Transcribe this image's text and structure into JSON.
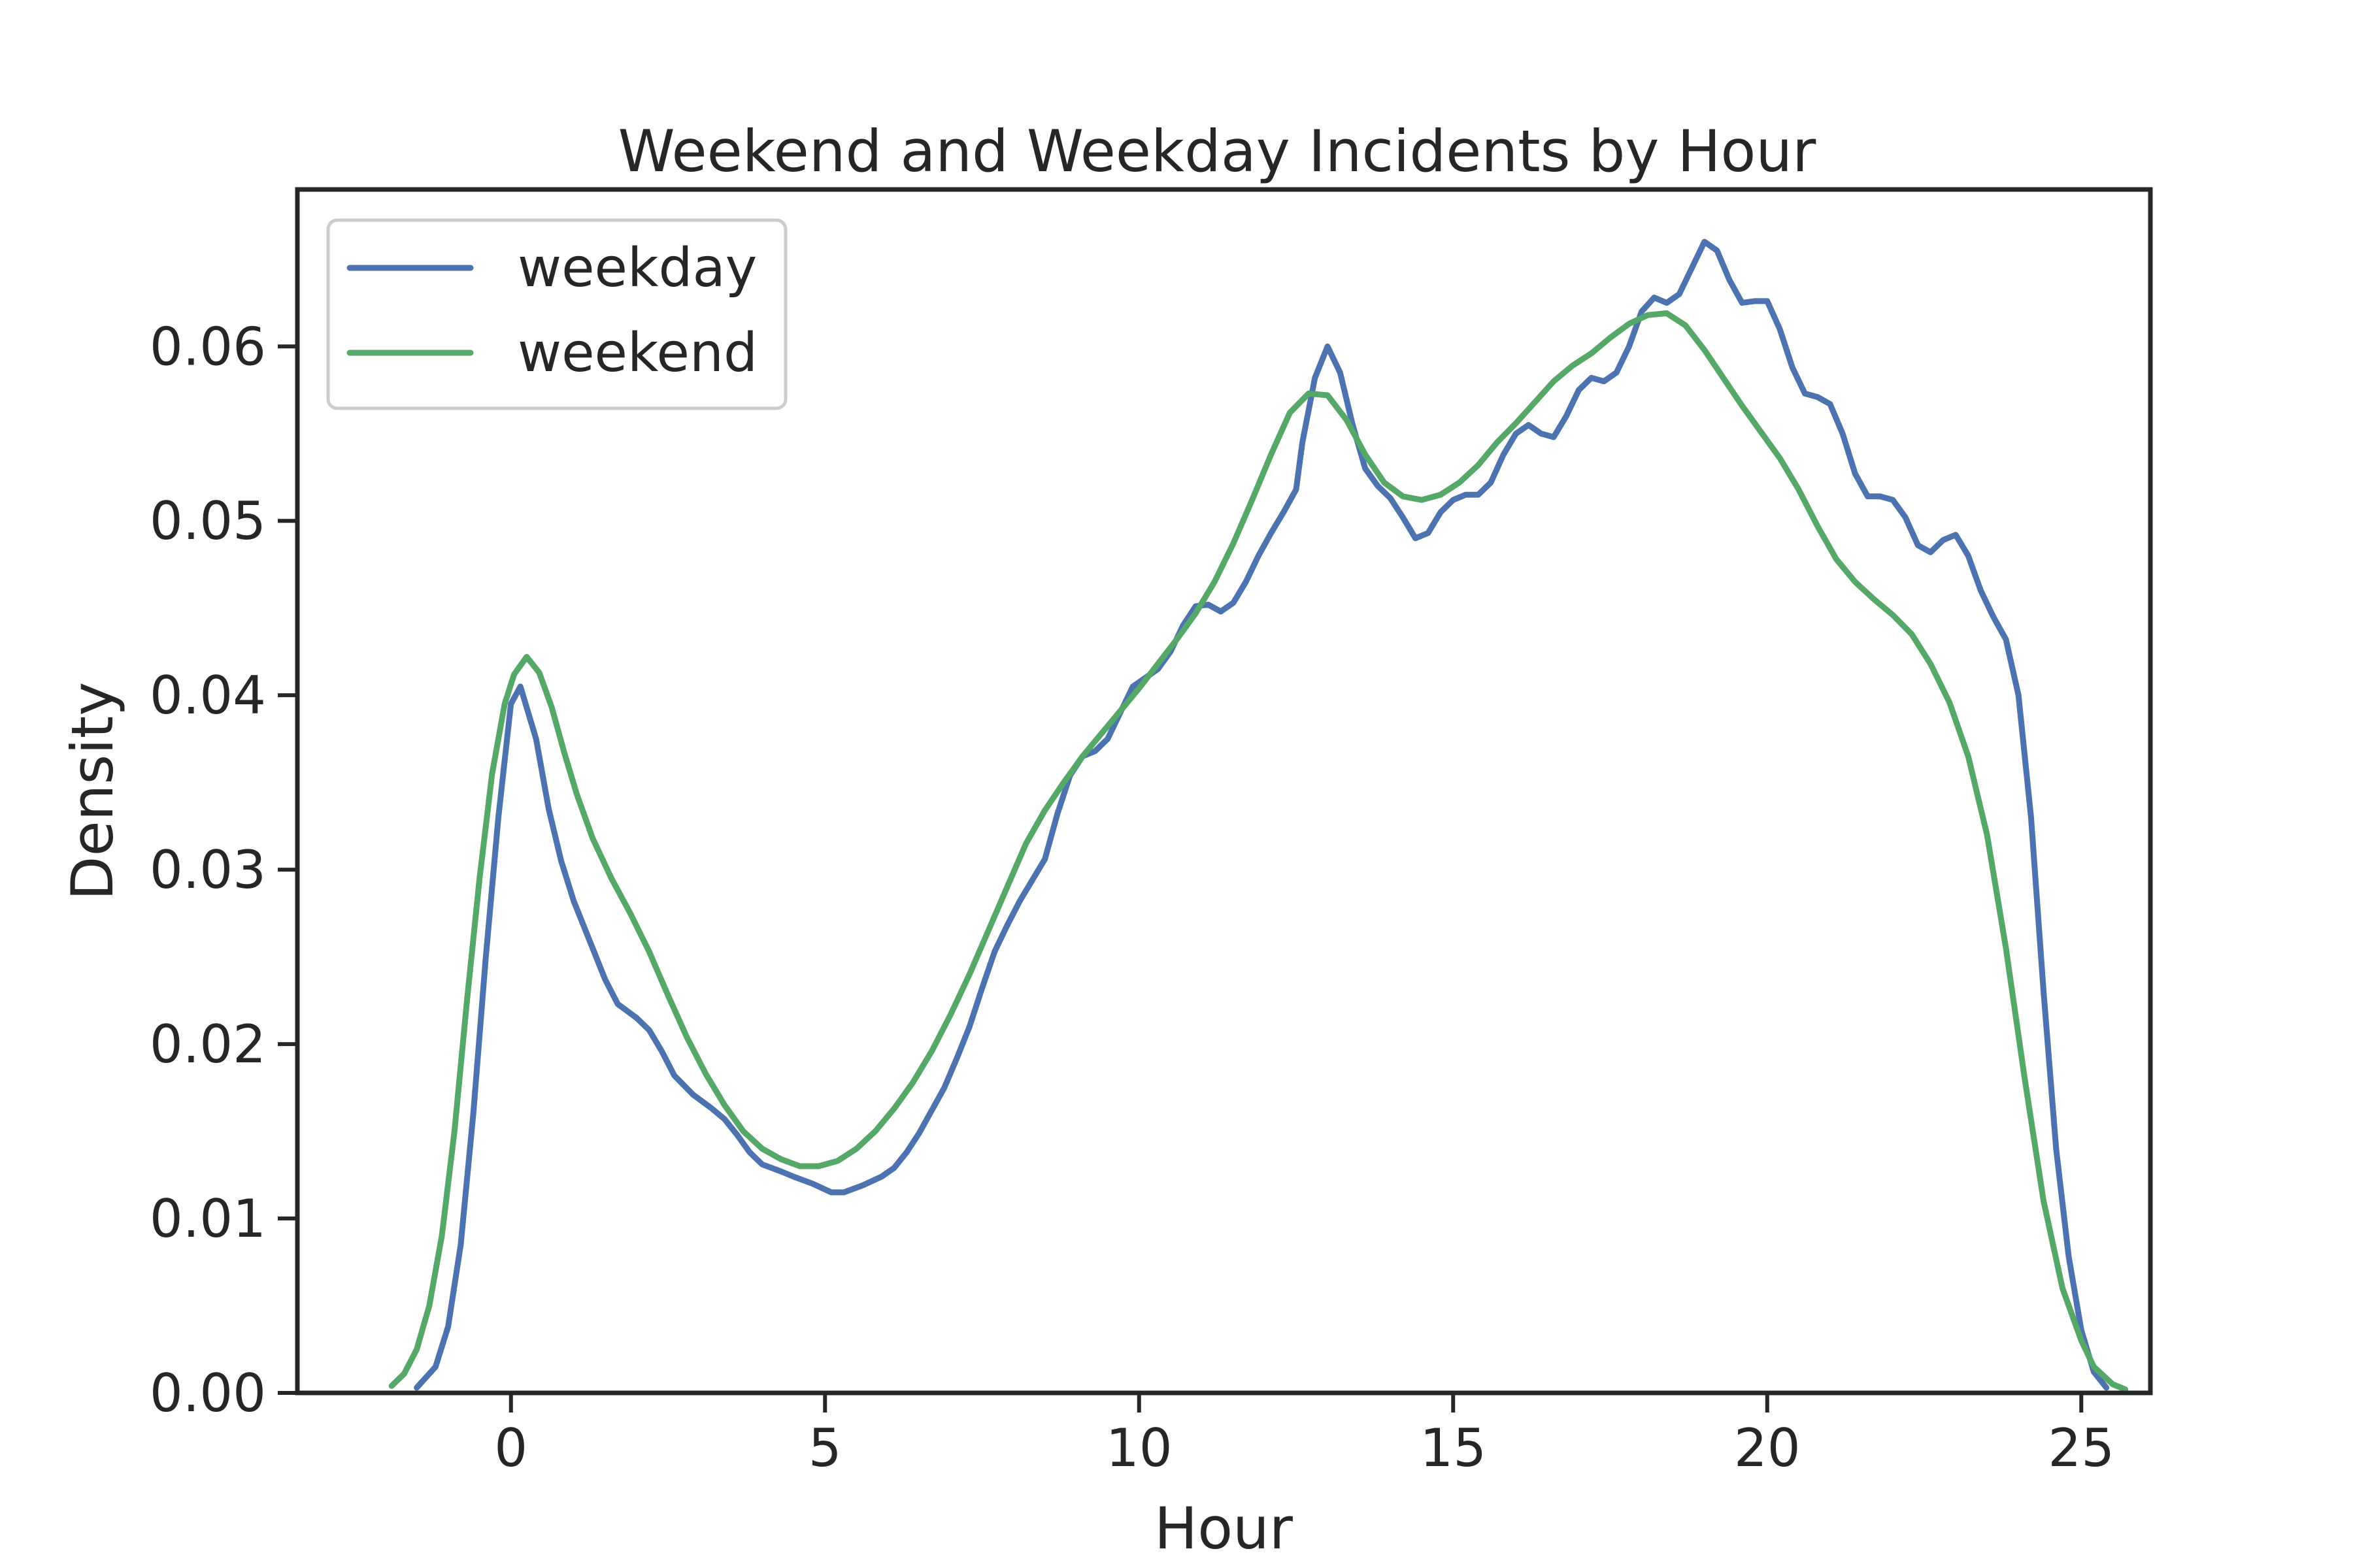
{
  "chart_data": {
    "type": "line",
    "title": "Weekend and Weekday Incidents by Hour",
    "xlabel": "Hour",
    "ylabel": "Density",
    "xlim": [
      -3.4,
      26.1
    ],
    "ylim": [
      0,
      0.069
    ],
    "xticks": [
      0,
      5,
      10,
      15,
      20,
      25
    ],
    "xtick_labels": [
      "0",
      "5",
      "10",
      "15",
      "20",
      "25"
    ],
    "yticks": [
      0,
      0.01,
      0.02,
      0.03,
      0.04,
      0.05,
      0.06
    ],
    "ytick_labels": [
      "0.00",
      "0.01",
      "0.02",
      "0.03",
      "0.04",
      "0.05",
      "0.06"
    ],
    "grid": false,
    "legend_position": "top-left",
    "series": [
      {
        "name": "weekday",
        "color": "#4c72b0",
        "points": [
          [
            -1.5,
            0.0003
          ],
          [
            -1.2,
            0.0015
          ],
          [
            -1.0,
            0.0038
          ],
          [
            -0.8,
            0.0085
          ],
          [
            -0.6,
            0.016
          ],
          [
            -0.4,
            0.025
          ],
          [
            -0.2,
            0.033
          ],
          [
            0.0,
            0.0395
          ],
          [
            0.15,
            0.0405
          ],
          [
            0.4,
            0.0375
          ],
          [
            0.6,
            0.0335
          ],
          [
            0.8,
            0.0305
          ],
          [
            1.0,
            0.0282
          ],
          [
            1.3,
            0.0255
          ],
          [
            1.5,
            0.0237
          ],
          [
            1.7,
            0.0223
          ],
          [
            2.0,
            0.0215
          ],
          [
            2.2,
            0.0208
          ],
          [
            2.4,
            0.0196
          ],
          [
            2.6,
            0.0182
          ],
          [
            2.9,
            0.0171
          ],
          [
            3.2,
            0.0163
          ],
          [
            3.4,
            0.0157
          ],
          [
            3.6,
            0.0148
          ],
          [
            3.8,
            0.0138
          ],
          [
            4.0,
            0.0131
          ],
          [
            4.3,
            0.0127
          ],
          [
            4.5,
            0.0124
          ],
          [
            4.8,
            0.012
          ],
          [
            5.1,
            0.0115
          ],
          [
            5.3,
            0.0115
          ],
          [
            5.6,
            0.0119
          ],
          [
            5.9,
            0.0124
          ],
          [
            6.1,
            0.0129
          ],
          [
            6.3,
            0.0138
          ],
          [
            6.5,
            0.0149
          ],
          [
            6.7,
            0.0162
          ],
          [
            6.9,
            0.0175
          ],
          [
            7.1,
            0.0192
          ],
          [
            7.3,
            0.021
          ],
          [
            7.5,
            0.0232
          ],
          [
            7.7,
            0.0253
          ],
          [
            7.9,
            0.0268
          ],
          [
            8.1,
            0.0282
          ],
          [
            8.3,
            0.0294
          ],
          [
            8.5,
            0.0306
          ],
          [
            8.7,
            0.0332
          ],
          [
            8.9,
            0.0354
          ],
          [
            9.1,
            0.0365
          ],
          [
            9.3,
            0.0368
          ],
          [
            9.5,
            0.0375
          ],
          [
            9.7,
            0.039
          ],
          [
            9.9,
            0.0405
          ],
          [
            10.1,
            0.041
          ],
          [
            10.3,
            0.0415
          ],
          [
            10.5,
            0.0425
          ],
          [
            10.7,
            0.044
          ],
          [
            10.9,
            0.0451
          ],
          [
            11.1,
            0.0452
          ],
          [
            11.3,
            0.0448
          ],
          [
            11.5,
            0.0453
          ],
          [
            11.7,
            0.0465
          ],
          [
            11.9,
            0.048
          ],
          [
            12.1,
            0.0493
          ],
          [
            12.3,
            0.0505
          ],
          [
            12.5,
            0.0518
          ],
          [
            12.6,
            0.0545
          ],
          [
            12.8,
            0.0582
          ],
          [
            13.0,
            0.06
          ],
          [
            13.2,
            0.0585
          ],
          [
            13.4,
            0.0555
          ],
          [
            13.6,
            0.053
          ],
          [
            13.8,
            0.052
          ],
          [
            14.0,
            0.0513
          ],
          [
            14.2,
            0.0502
          ],
          [
            14.4,
            0.049
          ],
          [
            14.6,
            0.0493
          ],
          [
            14.8,
            0.0505
          ],
          [
            15.0,
            0.0512
          ],
          [
            15.2,
            0.0515
          ],
          [
            15.4,
            0.0515
          ],
          [
            15.6,
            0.0522
          ],
          [
            15.8,
            0.0538
          ],
          [
            16.0,
            0.055
          ],
          [
            16.2,
            0.0555
          ],
          [
            16.4,
            0.055
          ],
          [
            16.6,
            0.0548
          ],
          [
            16.8,
            0.056
          ],
          [
            17.0,
            0.0575
          ],
          [
            17.2,
            0.0582
          ],
          [
            17.4,
            0.058
          ],
          [
            17.6,
            0.0585
          ],
          [
            17.8,
            0.06
          ],
          [
            18.0,
            0.062
          ],
          [
            18.2,
            0.0628
          ],
          [
            18.4,
            0.0625
          ],
          [
            18.6,
            0.063
          ],
          [
            18.8,
            0.0645
          ],
          [
            19.0,
            0.066
          ],
          [
            19.2,
            0.0655
          ],
          [
            19.4,
            0.0638
          ],
          [
            19.6,
            0.0625
          ],
          [
            19.8,
            0.0626
          ],
          [
            20.0,
            0.0626
          ],
          [
            20.2,
            0.061
          ],
          [
            20.4,
            0.0588
          ],
          [
            20.6,
            0.0573
          ],
          [
            20.8,
            0.0571
          ],
          [
            21.0,
            0.0567
          ],
          [
            21.2,
            0.055
          ],
          [
            21.4,
            0.0527
          ],
          [
            21.6,
            0.0514
          ],
          [
            21.8,
            0.0514
          ],
          [
            22.0,
            0.0512
          ],
          [
            22.2,
            0.0502
          ],
          [
            22.4,
            0.0486
          ],
          [
            22.6,
            0.0482
          ],
          [
            22.8,
            0.0489
          ],
          [
            23.0,
            0.0492
          ],
          [
            23.2,
            0.048
          ],
          [
            23.4,
            0.046
          ],
          [
            23.6,
            0.0445
          ],
          [
            23.8,
            0.0432
          ],
          [
            24.0,
            0.04
          ],
          [
            24.2,
            0.033
          ],
          [
            24.4,
            0.023
          ],
          [
            24.6,
            0.014
          ],
          [
            24.8,
            0.0078
          ],
          [
            25.0,
            0.0036
          ],
          [
            25.2,
            0.0012
          ],
          [
            25.4,
            0.0003
          ]
        ]
      },
      {
        "name": "weekend",
        "color": "#55a868",
        "points": [
          [
            -1.9,
            0.0004
          ],
          [
            -1.7,
            0.0011
          ],
          [
            -1.5,
            0.0025
          ],
          [
            -1.3,
            0.005
          ],
          [
            -1.1,
            0.009
          ],
          [
            -0.9,
            0.015
          ],
          [
            -0.7,
            0.0225
          ],
          [
            -0.5,
            0.0295
          ],
          [
            -0.3,
            0.0355
          ],
          [
            -0.1,
            0.0395
          ],
          [
            0.05,
            0.0412
          ],
          [
            0.25,
            0.0422
          ],
          [
            0.45,
            0.0413
          ],
          [
            0.65,
            0.0393
          ],
          [
            0.85,
            0.0367
          ],
          [
            1.05,
            0.0343
          ],
          [
            1.3,
            0.0318
          ],
          [
            1.6,
            0.0295
          ],
          [
            1.9,
            0.0275
          ],
          [
            2.2,
            0.0253
          ],
          [
            2.5,
            0.0228
          ],
          [
            2.8,
            0.0204
          ],
          [
            3.1,
            0.0183
          ],
          [
            3.4,
            0.0165
          ],
          [
            3.7,
            0.015
          ],
          [
            4.0,
            0.014
          ],
          [
            4.3,
            0.0134
          ],
          [
            4.6,
            0.013
          ],
          [
            4.9,
            0.013
          ],
          [
            5.2,
            0.0133
          ],
          [
            5.5,
            0.014
          ],
          [
            5.8,
            0.015
          ],
          [
            6.1,
            0.0163
          ],
          [
            6.4,
            0.0178
          ],
          [
            6.7,
            0.0196
          ],
          [
            7.0,
            0.0217
          ],
          [
            7.3,
            0.024
          ],
          [
            7.6,
            0.0265
          ],
          [
            7.9,
            0.029
          ],
          [
            8.2,
            0.0315
          ],
          [
            8.5,
            0.0334
          ],
          [
            8.8,
            0.035
          ],
          [
            9.1,
            0.0365
          ],
          [
            9.4,
            0.0378
          ],
          [
            9.7,
            0.0391
          ],
          [
            10.0,
            0.0404
          ],
          [
            10.3,
            0.0418
          ],
          [
            10.6,
            0.0432
          ],
          [
            10.9,
            0.0447
          ],
          [
            11.2,
            0.0465
          ],
          [
            11.5,
            0.0487
          ],
          [
            11.8,
            0.0512
          ],
          [
            12.1,
            0.0538
          ],
          [
            12.4,
            0.0562
          ],
          [
            12.7,
            0.0573
          ],
          [
            13.0,
            0.0572
          ],
          [
            13.3,
            0.0558
          ],
          [
            13.6,
            0.0538
          ],
          [
            13.9,
            0.0522
          ],
          [
            14.2,
            0.0514
          ],
          [
            14.5,
            0.0512
          ],
          [
            14.8,
            0.0515
          ],
          [
            15.1,
            0.0522
          ],
          [
            15.4,
            0.0532
          ],
          [
            15.7,
            0.0545
          ],
          [
            16.0,
            0.0556
          ],
          [
            16.3,
            0.0568
          ],
          [
            16.6,
            0.058
          ],
          [
            16.9,
            0.0589
          ],
          [
            17.2,
            0.0596
          ],
          [
            17.5,
            0.0605
          ],
          [
            17.8,
            0.0613
          ],
          [
            18.1,
            0.0618
          ],
          [
            18.4,
            0.0619
          ],
          [
            18.7,
            0.0612
          ],
          [
            19.0,
            0.0598
          ],
          [
            19.3,
            0.0582
          ],
          [
            19.6,
            0.0566
          ],
          [
            19.9,
            0.0551
          ],
          [
            20.2,
            0.0536
          ],
          [
            20.5,
            0.0518
          ],
          [
            20.8,
            0.0497
          ],
          [
            21.1,
            0.0478
          ],
          [
            21.4,
            0.0465
          ],
          [
            21.7,
            0.0455
          ],
          [
            22.0,
            0.0446
          ],
          [
            22.3,
            0.0435
          ],
          [
            22.6,
            0.0418
          ],
          [
            22.9,
            0.0396
          ],
          [
            23.2,
            0.0365
          ],
          [
            23.5,
            0.032
          ],
          [
            23.8,
            0.0255
          ],
          [
            24.1,
            0.018
          ],
          [
            24.4,
            0.011
          ],
          [
            24.7,
            0.006
          ],
          [
            25.0,
            0.003
          ],
          [
            25.2,
            0.0015
          ],
          [
            25.5,
            0.0005
          ],
          [
            25.7,
            0.0002
          ]
        ]
      }
    ]
  }
}
